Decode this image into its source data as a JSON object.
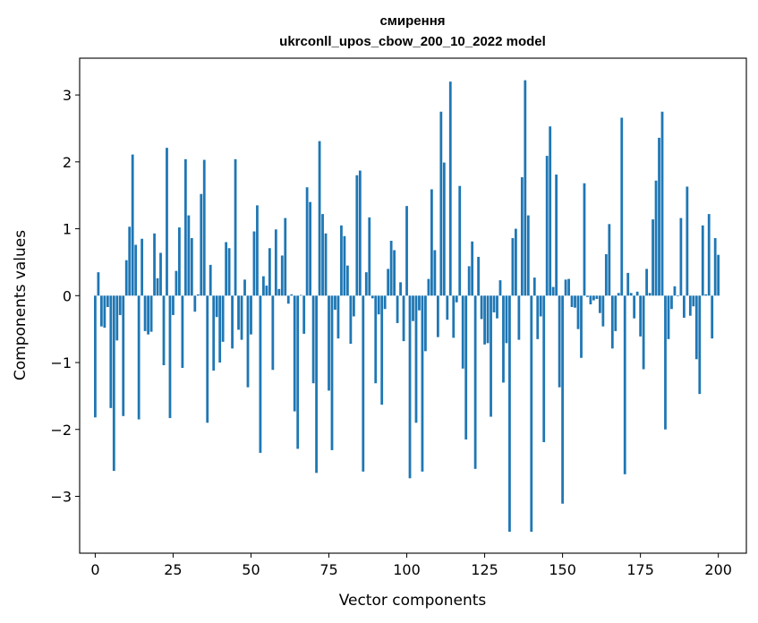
{
  "chart_data": {
    "type": "bar",
    "title": "смирення",
    "subtitle": "ukrconll_upos_cbow_200_10_2022 model",
    "xlabel": "Vector components",
    "ylabel": "Components values",
    "xlim": [
      -5,
      209
    ],
    "ylim": [
      -3.85,
      3.55
    ],
    "xticks": [
      0,
      25,
      50,
      75,
      100,
      125,
      150,
      175,
      200
    ],
    "yticks": [
      -3,
      -2,
      -1,
      0,
      1,
      2,
      3
    ],
    "ytick_labels": [
      "−3",
      "−2",
      "−1",
      "0",
      "1",
      "2",
      "3"
    ],
    "bar_color": "#1f77b4",
    "grid": false,
    "values": [
      -1.82,
      0.35,
      -0.46,
      -0.48,
      -0.17,
      -1.68,
      -2.62,
      -0.67,
      -0.29,
      -1.8,
      0.53,
      1.03,
      2.11,
      0.76,
      -1.85,
      0.85,
      -0.53,
      -0.58,
      -0.54,
      0.93,
      0.26,
      0.64,
      -1.04,
      2.21,
      -1.83,
      -0.29,
      0.37,
      1.02,
      -1.08,
      2.04,
      1.2,
      0.86,
      -0.24,
      0.02,
      1.52,
      2.03,
      -1.9,
      0.46,
      -1.12,
      -0.32,
      -1.0,
      -0.69,
      0.8,
      0.71,
      -0.79,
      2.04,
      -0.51,
      -0.66,
      0.24,
      -1.37,
      -0.58,
      0.96,
      1.35,
      -2.35,
      0.29,
      0.15,
      0.71,
      -1.11,
      0.99,
      0.1,
      0.6,
      1.16,
      -0.12,
      0.02,
      -1.73,
      -2.29,
      0.01,
      -0.57,
      1.62,
      1.4,
      -1.31,
      -2.65,
      2.31,
      1.22,
      0.93,
      -1.42,
      -2.31,
      -0.21,
      -0.64,
      1.05,
      0.89,
      0.45,
      -0.72,
      -0.31,
      1.8,
      1.87,
      -2.63,
      0.35,
      1.17,
      -0.04,
      -1.31,
      -0.28,
      -1.63,
      -0.2,
      0.4,
      0.82,
      0.68,
      -0.41,
      0.2,
      -0.68,
      1.34,
      -2.73,
      -0.38,
      -1.9,
      -0.22,
      -2.63,
      -0.83,
      0.25,
      1.59,
      0.68,
      -0.62,
      2.75,
      1.99,
      -0.36,
      3.2,
      -0.63,
      -0.1,
      1.64,
      -1.09,
      -2.15,
      0.44,
      0.81,
      -2.59,
      0.58,
      -0.35,
      -0.73,
      -0.71,
      -1.81,
      -0.25,
      -0.34,
      0.23,
      -1.3,
      -0.71,
      -3.53,
      0.86,
      1.0,
      -0.66,
      1.77,
      3.22,
      1.2,
      -3.53,
      0.27,
      -0.65,
      -0.31,
      -2.19,
      2.09,
      2.53,
      0.13,
      1.81,
      -1.37,
      -3.11,
      0.24,
      0.25,
      -0.17,
      -0.18,
      -0.5,
      -0.93,
      1.68,
      -0.02,
      -0.13,
      -0.07,
      -0.05,
      -0.26,
      -0.46,
      0.62,
      1.07,
      -0.79,
      -0.53,
      0.04,
      2.66,
      -2.67,
      0.34,
      0.04,
      -0.34,
      0.06,
      -0.61,
      -1.1,
      0.4,
      0.04,
      1.14,
      1.72,
      2.36,
      2.75,
      -2.0,
      -0.65,
      -0.2,
      0.14,
      -0.01,
      1.16,
      -0.33,
      1.63,
      -0.3,
      -0.16,
      -0.95,
      -1.47,
      1.05,
      0.02,
      1.22,
      -0.64,
      0.86,
      0.61
    ]
  }
}
